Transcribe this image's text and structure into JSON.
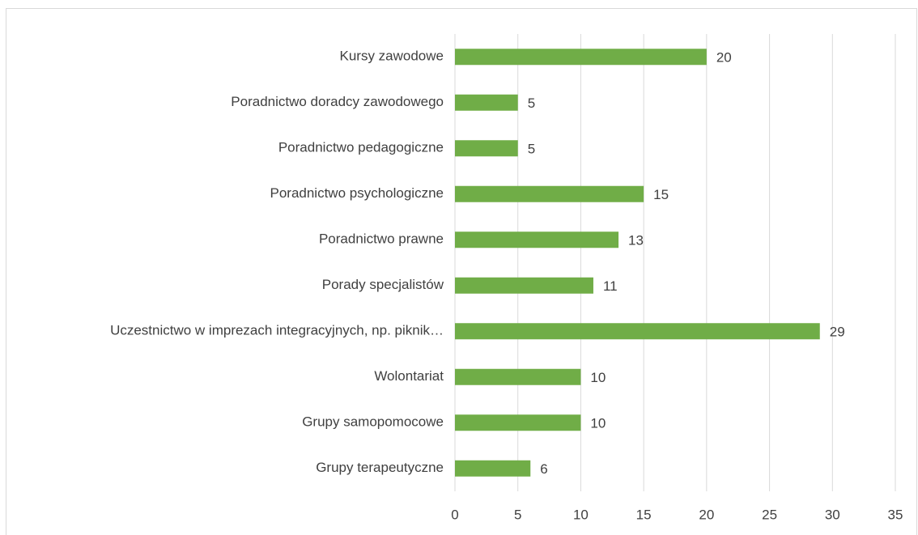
{
  "chart_data": {
    "type": "bar",
    "orientation": "horizontal",
    "categories": [
      "Kursy zawodowe",
      "Poradnictwo doradcy zawodowego",
      "Poradnictwo pedagogiczne",
      "Poradnictwo psychologiczne",
      "Poradnictwo prawne",
      "Porady specjalistów",
      "Uczestnictwo w imprezach integracyjnych, np. piknik…",
      "Wolontariat",
      "Grupy samopomocowe",
      "Grupy terapeutyczne"
    ],
    "values": [
      20,
      5,
      5,
      15,
      13,
      11,
      29,
      10,
      10,
      6
    ],
    "color": "#70ad47",
    "xlim": [
      0,
      35
    ],
    "xticks": [
      0,
      5,
      10,
      15,
      20,
      25,
      30,
      35
    ],
    "grid": true,
    "data_labels": true
  }
}
